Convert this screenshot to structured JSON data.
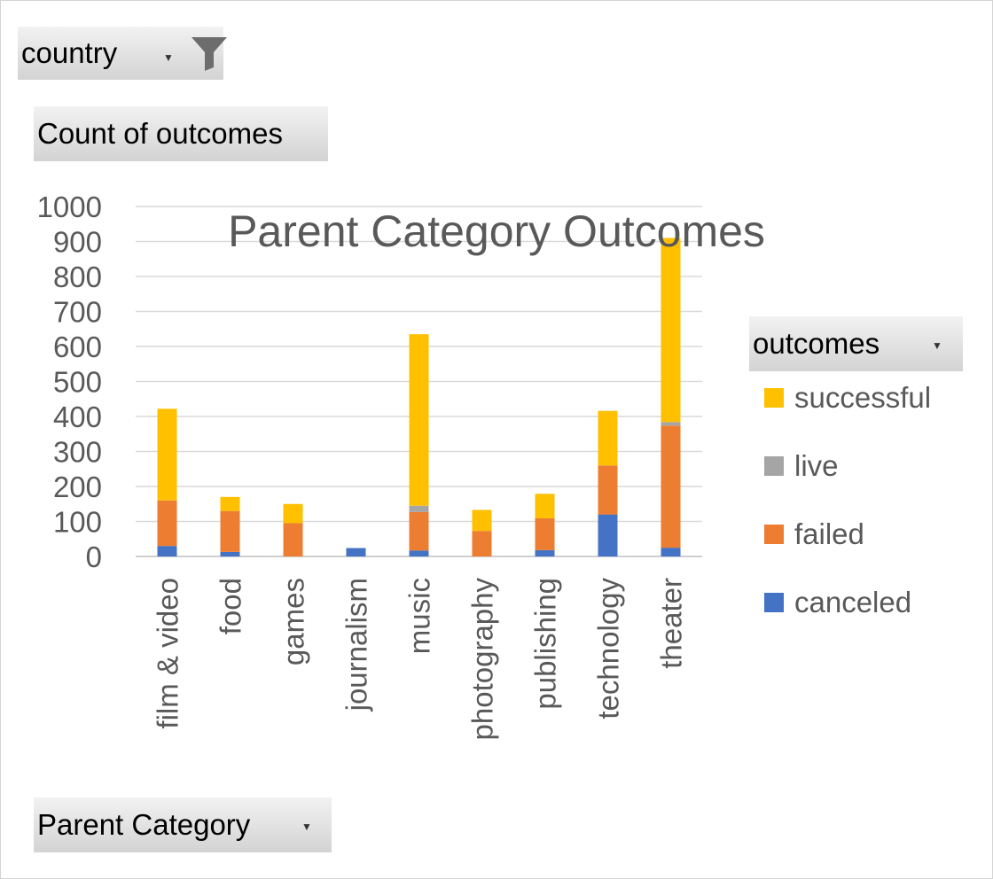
{
  "filters": {
    "country_label": "country",
    "values_label": "Count of outcomes",
    "axis_field_label": "Parent Category",
    "legend_field_label": "outcomes"
  },
  "icons": {
    "filter": "filter-funnel-icon",
    "dropdown": "dropdown-arrow-icon"
  },
  "chart_data": {
    "type": "bar",
    "stacked": true,
    "title": "Parent Category Outcomes",
    "xlabel": "",
    "ylabel": "",
    "ylim": [
      0,
      1000
    ],
    "yticks": [
      0,
      100,
      200,
      300,
      400,
      500,
      600,
      700,
      800,
      900,
      1000
    ],
    "grid": true,
    "legend_position": "right",
    "categories": [
      "film & video",
      "food",
      "games",
      "journalism",
      "music",
      "photography",
      "publishing",
      "technology",
      "theater"
    ],
    "series": [
      {
        "name": "canceled",
        "color": "#4472C4",
        "values": [
          30,
          13,
          0,
          24,
          17,
          0,
          18,
          120,
          25
        ]
      },
      {
        "name": "failed",
        "color": "#ED7D31",
        "values": [
          130,
          117,
          95,
          0,
          110,
          73,
          91,
          140,
          349
        ]
      },
      {
        "name": "live",
        "color": "#A5A5A5",
        "values": [
          0,
          0,
          0,
          0,
          18,
          0,
          0,
          0,
          10
        ]
      },
      {
        "name": "successful",
        "color": "#FFC000",
        "values": [
          262,
          40,
          55,
          0,
          490,
          60,
          70,
          156,
          526
        ]
      }
    ]
  }
}
